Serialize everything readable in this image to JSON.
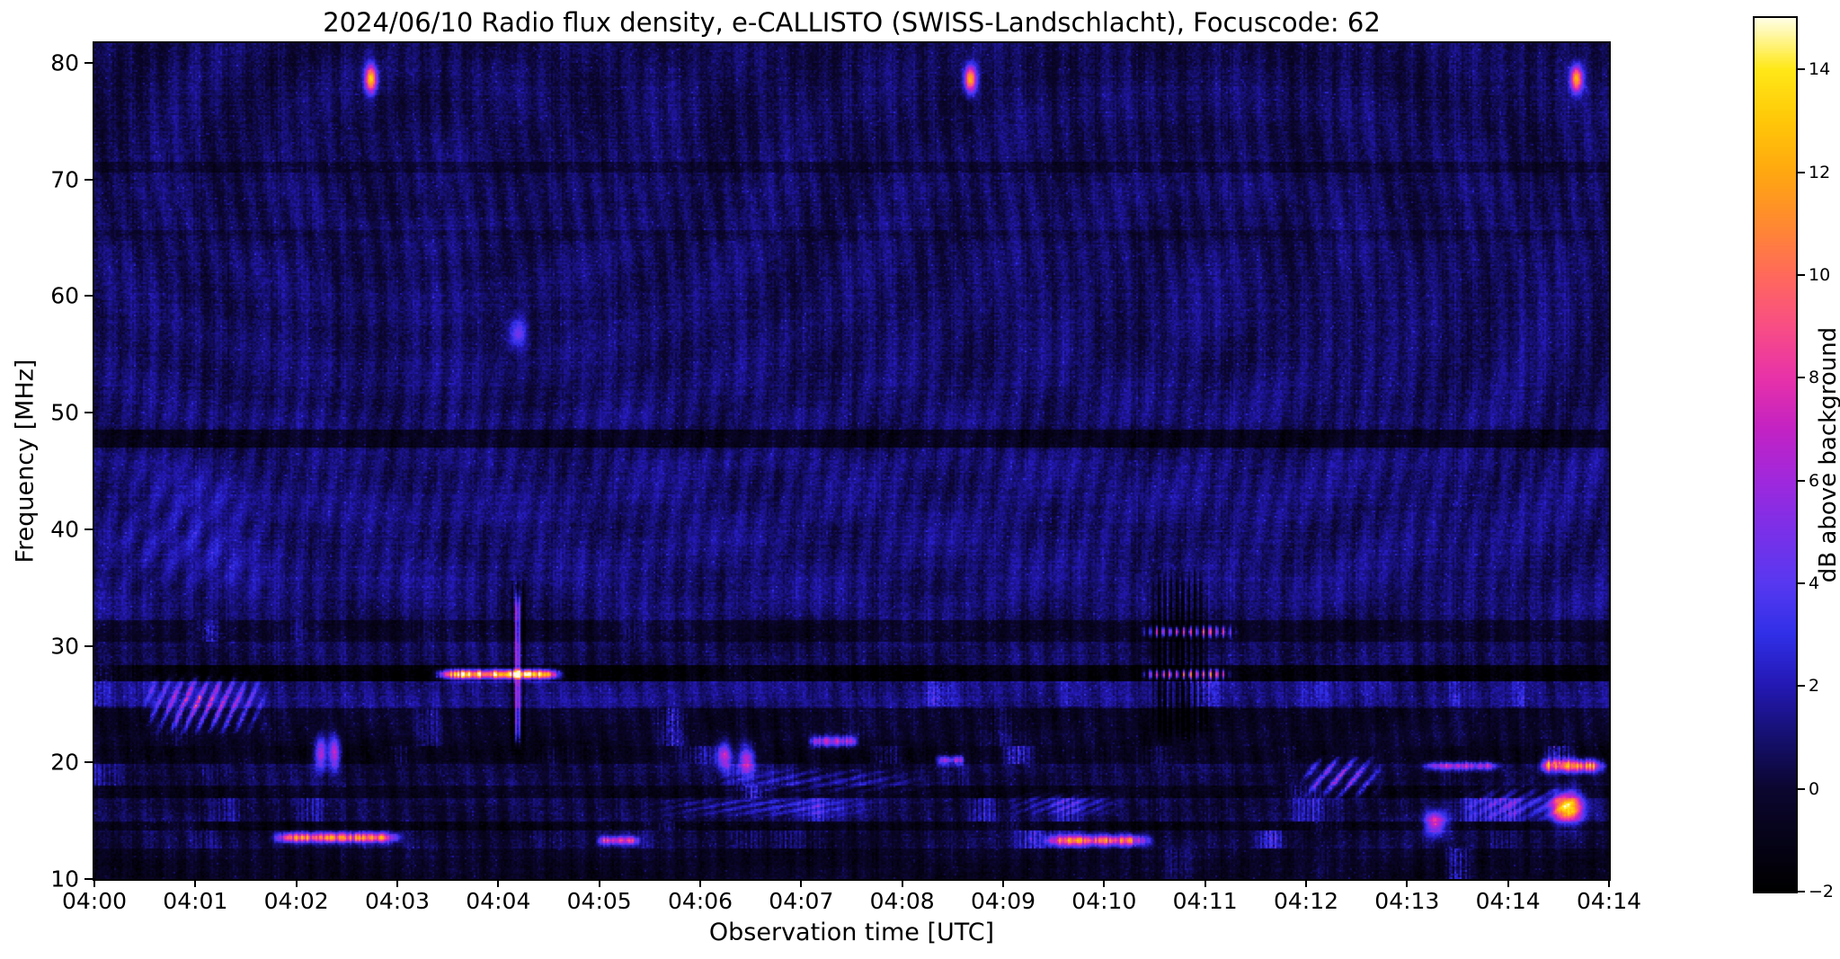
{
  "chart_data": {
    "type": "heatmap",
    "title": "2024/06/10  Radio flux density, e-CALLISTO (SWISS-Landschlacht), Focuscode: 62",
    "xlabel": "Observation time [UTC]",
    "ylabel": "Frequency [MHz]",
    "colorbar_label": "dB above background",
    "x_tick_labels": [
      "04:00",
      "04:01",
      "04:02",
      "04:03",
      "04:04",
      "04:05",
      "04:06",
      "04:07",
      "04:08",
      "04:09",
      "04:10",
      "04:11",
      "04:12",
      "04:13",
      "04:14",
      "04:14"
    ],
    "y_tick_labels": [
      "80",
      "70",
      "60",
      "50",
      "40",
      "30",
      "20",
      "10"
    ],
    "y_tick_values": [
      80,
      70,
      60,
      50,
      40,
      30,
      20,
      10
    ],
    "freq_range_mhz": [
      10,
      81.7
    ],
    "value_range_db": [
      -2,
      15
    ],
    "colorbar_ticks": [
      {
        "v": 14,
        "label": "14"
      },
      {
        "v": 12,
        "label": "12"
      },
      {
        "v": 10,
        "label": "10"
      },
      {
        "v": 8,
        "label": "8"
      },
      {
        "v": 6,
        "label": "6"
      },
      {
        "v": 4,
        "label": "4"
      },
      {
        "v": 2,
        "label": "2"
      },
      {
        "v": 0,
        "label": "0"
      },
      {
        "v": -2,
        "label": "−2"
      }
    ],
    "colormap_stops": [
      [
        -2,
        "#000000"
      ],
      [
        0,
        "#0b0630"
      ],
      [
        1,
        "#151070"
      ],
      [
        2,
        "#2418b4"
      ],
      [
        3,
        "#3030e8"
      ],
      [
        4,
        "#5838f0"
      ],
      [
        5,
        "#7a30e8"
      ],
      [
        6,
        "#a028dc"
      ],
      [
        7,
        "#c322c3"
      ],
      [
        8,
        "#e832a8"
      ],
      [
        9,
        "#f84e84"
      ],
      [
        10,
        "#ff6a5a"
      ],
      [
        11,
        "#ff8a30"
      ],
      [
        12,
        "#ffa810"
      ],
      [
        13,
        "#ffc808"
      ],
      [
        14,
        "#ffe818"
      ],
      [
        15,
        "#ffffe8"
      ]
    ],
    "background_model": {
      "base_db": 0.85,
      "noise_db": 0.55,
      "fringe_amp_db": 0.4,
      "arc_amp_db": 0.22,
      "high_freq_dim_db": -0.35,
      "low_band_quiet_before_t": 0.33,
      "low_band_quiet_factor": 0.5
    },
    "freq_bands": [
      {
        "f": [
          70.6,
          71.6
        ],
        "dv": -0.7
      },
      {
        "f": [
          64.8,
          65.6
        ],
        "dv": -0.4
      },
      {
        "f": [
          47.0,
          48.6
        ],
        "dv": -1.6
      },
      {
        "f": [
          33.0,
          46.0
        ],
        "dv": 0.15
      },
      {
        "f": [
          30.4,
          32.2
        ],
        "dv": -1.2,
        "patchy": 1.5
      },
      {
        "f": [
          28.4,
          30.4
        ],
        "dv": -0.4
      },
      {
        "f": [
          26.9,
          28.3
        ],
        "dv": -2.4,
        "patchy": 1.0
      },
      {
        "f": [
          24.8,
          26.9
        ],
        "dv": 0.3,
        "patchy": 1.2
      },
      {
        "f": [
          21.4,
          24.6
        ],
        "dv": -1.3,
        "patchy": 2.2
      },
      {
        "f": [
          19.8,
          21.4
        ],
        "dv": -1.8,
        "patchy": 3.2
      },
      {
        "f": [
          18.0,
          19.8
        ],
        "dv": -0.8,
        "patchy": 3.6
      },
      {
        "f": [
          16.9,
          18.0
        ],
        "dv": -1.6,
        "patchy": 2.6
      },
      {
        "f": [
          15.0,
          16.9
        ],
        "dv": -0.6,
        "patchy": 4.2
      },
      {
        "f": [
          14.1,
          15.0
        ],
        "dv": -1.8,
        "patchy": 2.2
      },
      {
        "f": [
          12.6,
          14.1
        ],
        "dv": -0.9,
        "patchy": 3.4
      },
      {
        "f": [
          10.0,
          12.6
        ],
        "dv": -1.4,
        "patchy": 2.6
      }
    ],
    "features": [
      {
        "type": "haze",
        "t": [
          0.0,
          0.15
        ],
        "f": [
          32.5,
          46.5
        ],
        "peak": 1.7
      },
      {
        "type": "diag",
        "t": [
          0.03,
          0.115
        ],
        "f": [
          22.3,
          27.6
        ],
        "peak": 7.5,
        "stripes": 10
      },
      {
        "type": "streak",
        "t": [
          0.222,
          0.31
        ],
        "f": [
          27.1,
          28.0
        ],
        "peak": 16
      },
      {
        "type": "vstripe",
        "t": [
          0.272,
          0.285
        ],
        "f": [
          20.5,
          36.5
        ],
        "peak": -3.0,
        "striped": true
      },
      {
        "type": "vstripe",
        "t": [
          0.2765,
          0.281
        ],
        "f": [
          21.0,
          35.0
        ],
        "peak": 5.5
      },
      {
        "type": "dot",
        "t": 0.2785,
        "f": 56.9,
        "rt": 0.004,
        "rf": 0.9,
        "peak": 4.5
      },
      {
        "type": "dot",
        "t": 0.182,
        "f": 78.7,
        "rt": 0.0028,
        "rf": 0.8,
        "peak": 12
      },
      {
        "type": "dot",
        "t": 0.578,
        "f": 78.7,
        "rt": 0.0028,
        "rf": 0.8,
        "peak": 12
      },
      {
        "type": "dot",
        "t": 0.978,
        "f": 78.7,
        "rt": 0.0028,
        "rf": 0.8,
        "peak": 12
      },
      {
        "type": "vstripe",
        "t": [
          0.692,
          0.737
        ],
        "f": [
          21.5,
          36.8
        ],
        "peak": -3.2,
        "striped": true
      },
      {
        "type": "streak",
        "t": [
          0.69,
          0.755
        ],
        "f": [
          30.7,
          31.7
        ],
        "peak": 9.5,
        "dashed": true
      },
      {
        "type": "streak",
        "t": [
          0.69,
          0.752
        ],
        "f": [
          27.1,
          28.0
        ],
        "peak": 12,
        "dashed": true
      },
      {
        "type": "streak",
        "t": [
          0.115,
          0.205
        ],
        "f": [
          13.1,
          14.0
        ],
        "peak": 10.5
      },
      {
        "type": "streak",
        "t": [
          0.33,
          0.36
        ],
        "f": [
          12.9,
          13.7
        ],
        "peak": 7.5
      },
      {
        "type": "streak",
        "t": [
          0.625,
          0.7
        ],
        "f": [
          12.8,
          13.8
        ],
        "peak": 9.5
      },
      {
        "type": "streak",
        "t": [
          0.952,
          0.998
        ],
        "f": [
          19.1,
          20.3
        ],
        "peak": 10.5
      },
      {
        "type": "dot",
        "t": 0.972,
        "f": 16.2,
        "rt": 0.007,
        "rf": 0.9,
        "peak": 13.5
      },
      {
        "type": "diag",
        "t": [
          0.795,
          0.85
        ],
        "f": [
          16.8,
          20.6
        ],
        "peak": 7,
        "stripes": 5
      },
      {
        "type": "dot",
        "t": 0.149,
        "f": 20.9,
        "rt": 0.0028,
        "rf": 1.0,
        "peak": 8
      },
      {
        "type": "dot",
        "t": 0.158,
        "f": 20.9,
        "rt": 0.0028,
        "rf": 1.0,
        "peak": 8
      },
      {
        "type": "dot",
        "t": 0.415,
        "f": 20.6,
        "rt": 0.004,
        "rf": 0.8,
        "peak": 7
      },
      {
        "type": "dot",
        "t": 0.43,
        "f": 20.3,
        "rt": 0.004,
        "rf": 0.8,
        "peak": 7
      },
      {
        "type": "streak",
        "t": [
          0.555,
          0.575
        ],
        "f": [
          19.8,
          20.6
        ],
        "peak": 6.5
      },
      {
        "type": "dot",
        "t": 0.885,
        "f": 14.9,
        "rt": 0.005,
        "rf": 0.7,
        "peak": 8
      },
      {
        "type": "streak",
        "t": [
          0.875,
          0.93
        ],
        "f": [
          19.3,
          20.1
        ],
        "peak": 6
      },
      {
        "type": "haze",
        "t": [
          0.36,
          0.52
        ],
        "f": [
          15.2,
          17.2
        ],
        "peak": 2.6
      },
      {
        "type": "haze",
        "t": [
          0.4,
          0.56
        ],
        "f": [
          17.2,
          19.6
        ],
        "peak": 2.4
      },
      {
        "type": "haze",
        "t": [
          0.6,
          0.68
        ],
        "f": [
          15.3,
          17.5
        ],
        "peak": 2.8
      },
      {
        "type": "haze",
        "t": [
          0.9,
          0.985
        ],
        "f": [
          14.8,
          18.2
        ],
        "peak": 3.2
      },
      {
        "type": "streak",
        "t": [
          0.47,
          0.505
        ],
        "f": [
          21.3,
          22.3
        ],
        "peak": 6.5
      }
    ]
  }
}
